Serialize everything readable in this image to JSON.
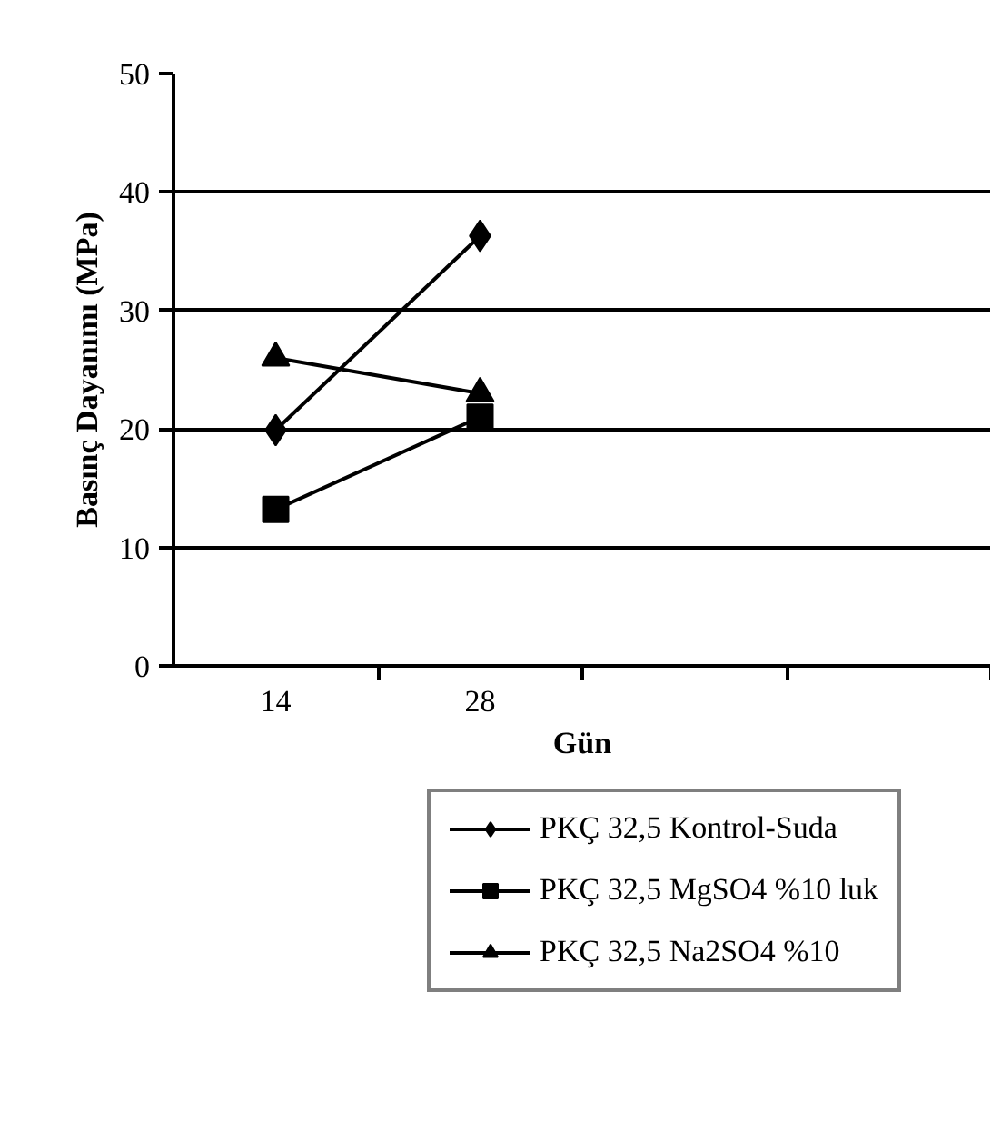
{
  "chart_data": {
    "type": "line",
    "ylabel": "Basınç Dayanımı (MPa)",
    "xlabel": "Gün",
    "categories": [
      "14",
      "28",
      null,
      null
    ],
    "ylim": [
      0,
      50
    ],
    "yticks": [
      0,
      10,
      20,
      30,
      40,
      50
    ],
    "grid": "y",
    "legend": "bottom",
    "line_style": "solid",
    "series": [
      {
        "name": "PKÇ 32,5 Kontrol-Suda",
        "color": "#000000",
        "marker": "diamond",
        "values": [
          19.9,
          36.3,
          null,
          null
        ]
      },
      {
        "name": "PKÇ 32,5 MgSO4 %10 luk",
        "color": "#000000",
        "marker": "square",
        "values": [
          13.2,
          21.0,
          null,
          null
        ]
      },
      {
        "name": "PKÇ 32,5 Na2SO4 %10",
        "color": "#000000",
        "marker": "triangle",
        "values": [
          26,
          23.0,
          null,
          null
        ]
      }
    ]
  }
}
